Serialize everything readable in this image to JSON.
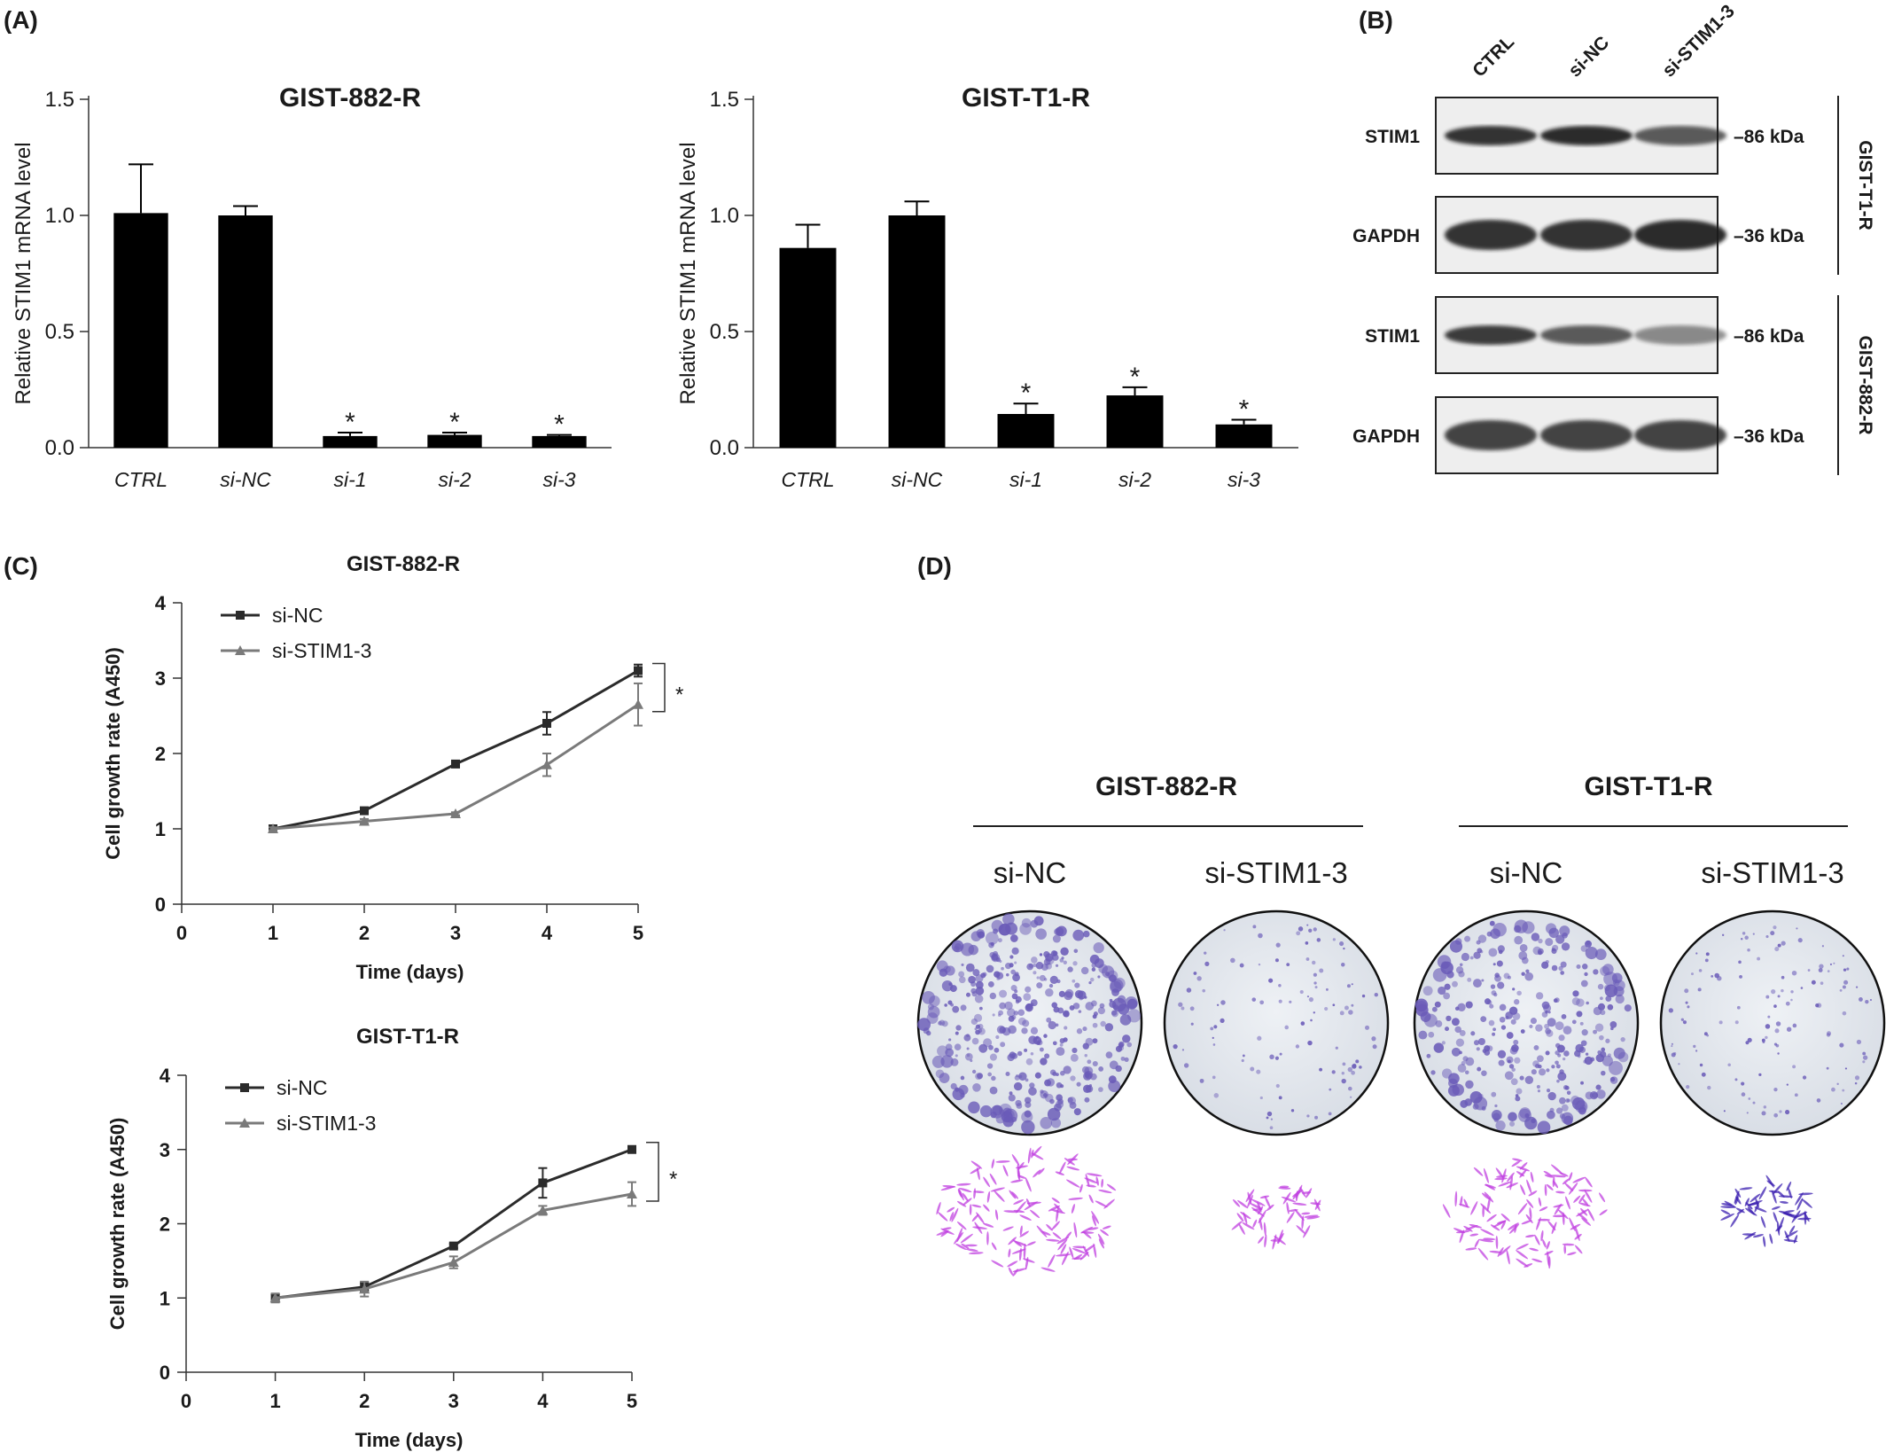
{
  "panels": {
    "a_label": "(A)",
    "b_label": "(B)",
    "c_label": "(C)",
    "d_label": "(D)"
  },
  "chart_data": [
    {
      "id": "bar-882",
      "type": "bar",
      "title": "GIST-882-R",
      "ylabel": "Relative STIM1 mRNA level",
      "xlabel": "",
      "ylim": [
        0,
        1.5
      ],
      "yticks": [
        "0.0",
        "0.5",
        "1.0",
        "1.5"
      ],
      "categories": [
        "CTRL",
        "si-NC",
        "si-1",
        "si-2",
        "si-3"
      ],
      "values": [
        1.01,
        1.0,
        0.05,
        0.055,
        0.05
      ],
      "errors": [
        0.21,
        0.04,
        0.015,
        0.01,
        0.005
      ],
      "significance": [
        "",
        "",
        "*",
        "*",
        "*"
      ],
      "bar_color": "#000000"
    },
    {
      "id": "bar-t1",
      "type": "bar",
      "title": "GIST-T1-R",
      "ylabel": "Relative STIM1 mRNA level",
      "xlabel": "",
      "ylim": [
        0,
        1.5
      ],
      "yticks": [
        "0.0",
        "0.5",
        "1.0",
        "1.5"
      ],
      "categories": [
        "CTRL",
        "si-NC",
        "si-1",
        "si-2",
        "si-3"
      ],
      "values": [
        0.86,
        1.0,
        0.145,
        0.225,
        0.1
      ],
      "errors": [
        0.1,
        0.06,
        0.045,
        0.035,
        0.02
      ],
      "significance": [
        "",
        "",
        "*",
        "*",
        "*"
      ],
      "bar_color": "#000000"
    },
    {
      "id": "line-882",
      "type": "line",
      "title": "GIST-882-R",
      "xlabel": "Time (days)",
      "ylabel": "Cell growth rate (A450)",
      "xlim": [
        0,
        5
      ],
      "ylim": [
        0,
        4
      ],
      "xticks": [
        "0",
        "1",
        "2",
        "3",
        "4",
        "5"
      ],
      "yticks": [
        "0",
        "1",
        "2",
        "3",
        "4"
      ],
      "x": [
        1,
        2,
        3,
        4,
        5
      ],
      "series": [
        {
          "name": "si-NC",
          "values": [
            1.0,
            1.24,
            1.86,
            2.4,
            3.1
          ],
          "errors": [
            0.02,
            0.03,
            0.03,
            0.15,
            0.08
          ],
          "color": "#2b2b2b",
          "marker": "square"
        },
        {
          "name": "si-STIM1-3",
          "values": [
            1.0,
            1.1,
            1.2,
            1.85,
            2.65
          ],
          "errors": [
            0.02,
            0.03,
            0.02,
            0.15,
            0.28
          ],
          "color": "#7a7a7a",
          "marker": "triangle"
        }
      ],
      "significance": "*",
      "legend": "top-left"
    },
    {
      "id": "line-t1",
      "type": "line",
      "title": "GIST-T1-R",
      "xlabel": "Time (days)",
      "ylabel": "Cell growth rate (A450)",
      "xlim": [
        0,
        5
      ],
      "ylim": [
        0,
        4
      ],
      "xticks": [
        "0",
        "1",
        "2",
        "3",
        "4",
        "5"
      ],
      "yticks": [
        "0",
        "1",
        "2",
        "3",
        "4"
      ],
      "x": [
        1,
        2,
        3,
        4,
        5
      ],
      "series": [
        {
          "name": "si-NC",
          "values": [
            1.0,
            1.15,
            1.7,
            2.55,
            3.0
          ],
          "errors": [
            0.05,
            0.06,
            0.03,
            0.2,
            0.03
          ],
          "color": "#2b2b2b",
          "marker": "square"
        },
        {
          "name": "si-STIM1-3",
          "values": [
            1.0,
            1.12,
            1.48,
            2.18,
            2.4
          ],
          "errors": [
            0.06,
            0.1,
            0.08,
            0.06,
            0.16
          ],
          "color": "#7a7a7a",
          "marker": "triangle"
        }
      ],
      "significance": "*",
      "legend": "top-left"
    }
  ],
  "western_blot": {
    "lanes": [
      "CTRL",
      "si-NC",
      "si-STIM1-3"
    ],
    "groups": [
      {
        "cell_line": "GIST-T1-R",
        "rows": [
          {
            "protein": "STIM1",
            "size": "–86 kDa",
            "intensity": [
              0.85,
              0.9,
              0.6
            ]
          },
          {
            "protein": "GAPDH",
            "size": "–36 kDa",
            "intensity": [
              0.85,
              0.85,
              0.9
            ]
          }
        ]
      },
      {
        "cell_line": "GIST-882-R",
        "rows": [
          {
            "protein": "STIM1",
            "size": "–86 kDa",
            "intensity": [
              0.8,
              0.6,
              0.3
            ]
          },
          {
            "protein": "GAPDH",
            "size": "–36 kDa",
            "intensity": [
              0.75,
              0.75,
              0.75
            ]
          }
        ]
      }
    ]
  },
  "colony_assay": {
    "groups": [
      {
        "title": "GIST-882-R",
        "conditions": [
          "si-NC",
          "si-STIM1-3"
        ],
        "colony_density": [
          0.95,
          0.2
        ]
      },
      {
        "title": "GIST-T1-R",
        "conditions": [
          "si-NC",
          "si-STIM1-3"
        ],
        "colony_density": [
          0.75,
          0.25
        ]
      }
    ],
    "colors": {
      "plate": "#e4e8ee",
      "colony": "#6a5bb8",
      "cell_stain": "#c040e0",
      "cell_stain_dark": "#3b1fb0"
    }
  }
}
